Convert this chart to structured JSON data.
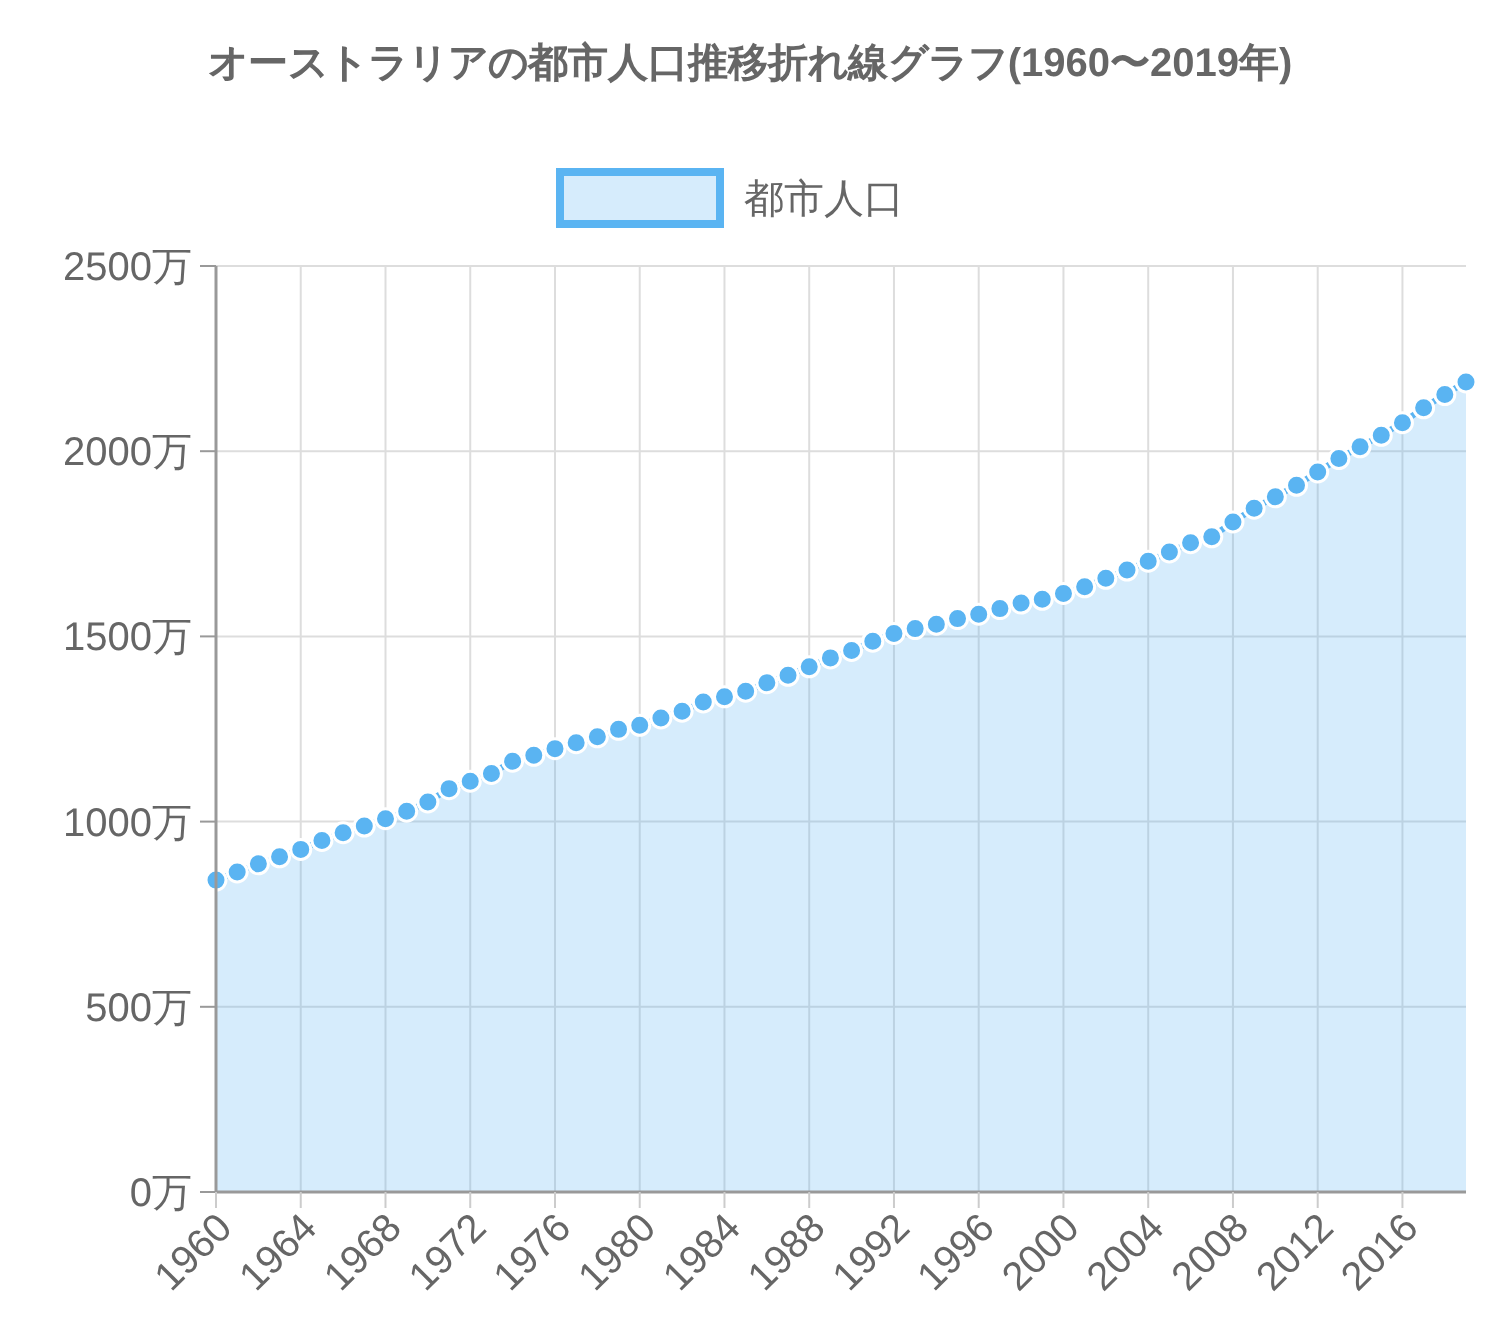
{
  "chart_data": {
    "type": "area",
    "title": "オーストラリアの都市人口推移折れ線グラフ(1960〜2019年)",
    "x": [
      1960,
      1961,
      1962,
      1963,
      1964,
      1965,
      1966,
      1967,
      1968,
      1969,
      1970,
      1971,
      1972,
      1973,
      1974,
      1975,
      1976,
      1977,
      1978,
      1979,
      1980,
      1981,
      1982,
      1983,
      1984,
      1985,
      1986,
      1987,
      1988,
      1989,
      1990,
      1991,
      1992,
      1993,
      1994,
      1995,
      1996,
      1997,
      1998,
      1999,
      2000,
      2001,
      2002,
      2003,
      2004,
      2005,
      2006,
      2007,
      2008,
      2009,
      2010,
      2011,
      2012,
      2013,
      2014,
      2015,
      2016,
      2017,
      2018,
      2019
    ],
    "series": [
      {
        "name": "都市人口",
        "color": "#5ab4f2",
        "values": [
          842,
          864,
          886,
          905,
          925,
          949,
          970,
          988,
          1008,
          1028,
          1053,
          1089,
          1109,
          1130,
          1163,
          1179,
          1197,
          1213,
          1229,
          1249,
          1260,
          1280,
          1298,
          1323,
          1337,
          1352,
          1375,
          1395,
          1418,
          1442,
          1462,
          1487,
          1508,
          1521,
          1533,
          1548,
          1560,
          1575,
          1590,
          1600,
          1616,
          1634,
          1657,
          1679,
          1703,
          1728,
          1753,
          1769,
          1809,
          1846,
          1877,
          1908,
          1944,
          1980,
          2012,
          2043,
          2077,
          2117,
          2153,
          2187
        ]
      }
    ],
    "xlim": [
      1960,
      2019
    ],
    "xticks": [
      1960,
      1964,
      1968,
      1972,
      1976,
      1980,
      1984,
      1988,
      1992,
      1996,
      2000,
      2004,
      2008,
      2012,
      2016
    ],
    "ylim": [
      0,
      2500
    ],
    "yticks": [
      {
        "value": 0,
        "label": "0万"
      },
      {
        "value": 500,
        "label": "500万"
      },
      {
        "value": 1000,
        "label": "1000万"
      },
      {
        "value": 1500,
        "label": "1500万"
      },
      {
        "value": 2000,
        "label": "2000万"
      },
      {
        "value": 2500,
        "label": "2500万"
      }
    ],
    "grid": true,
    "legend": "top",
    "marker": "circle"
  }
}
